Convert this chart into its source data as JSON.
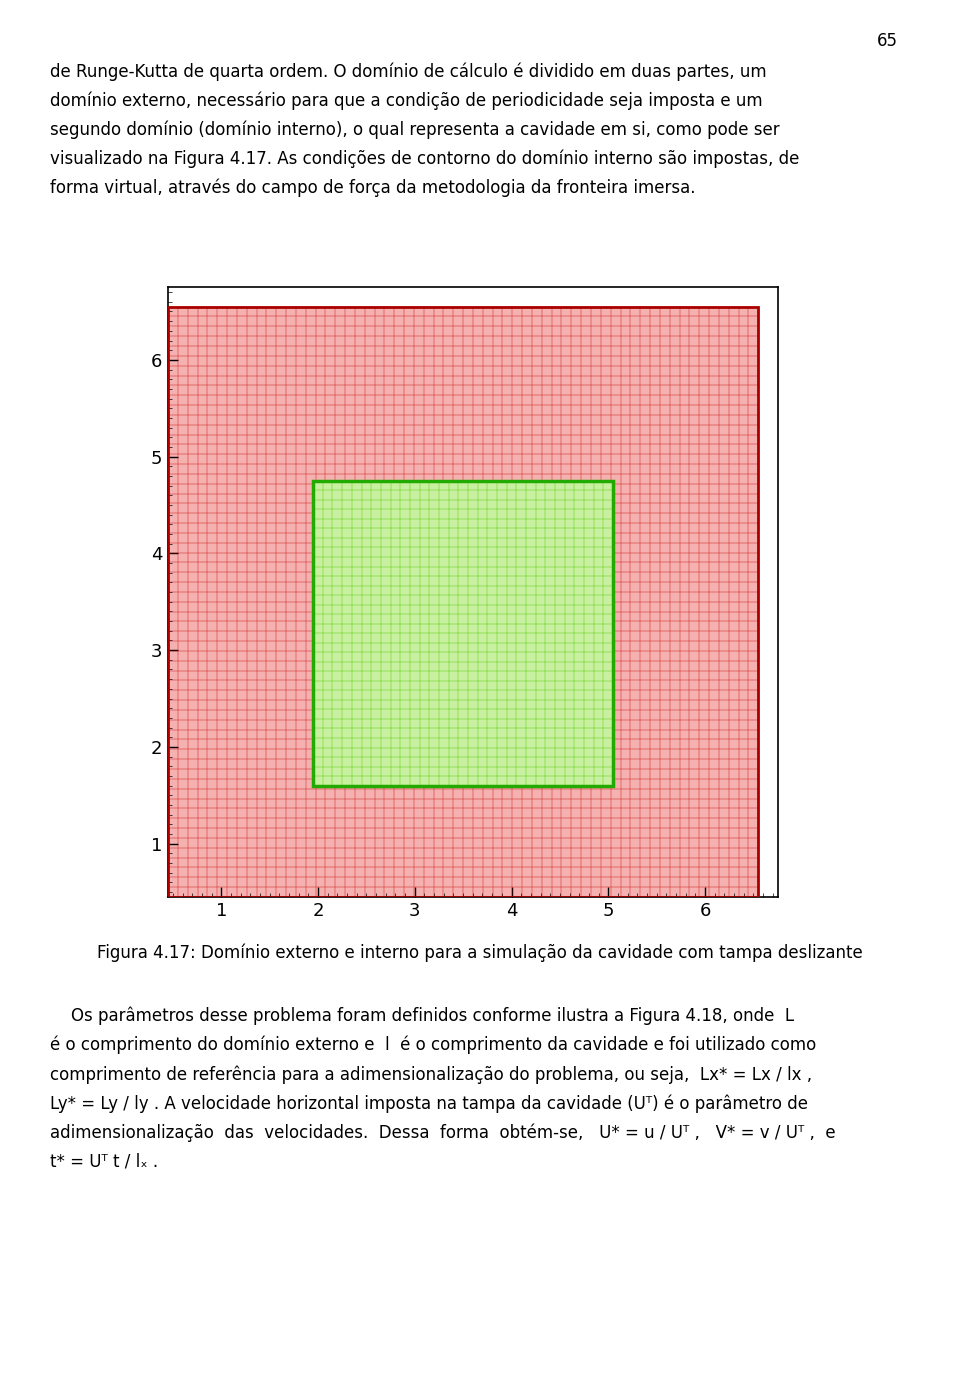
{
  "page_width": 9.6,
  "page_height": 13.85,
  "background_color": "#ffffff",
  "outer_domain": [
    0.45,
    6.55,
    0.45,
    6.55
  ],
  "inner_domain": [
    1.95,
    5.05,
    1.6,
    4.75
  ],
  "outer_grid_color": "#cc0000",
  "inner_grid_color": "#55cc00",
  "outer_border_color": "#aa0000",
  "inner_border_color": "#22aa00",
  "outer_fill_color": "#f5b0b0",
  "inner_fill_color": "#c8f0a0",
  "outer_grid_nx": 60,
  "outer_grid_ny": 60,
  "inner_grid_nx": 31,
  "inner_grid_ny": 32,
  "xlim": [
    0.45,
    6.75
  ],
  "ylim": [
    0.45,
    6.75
  ],
  "xticks": [
    1,
    2,
    3,
    4,
    5,
    6
  ],
  "yticks": [
    1,
    2,
    3,
    4,
    5,
    6
  ],
  "tick_fontsize": 13,
  "outer_border_linewidth": 2.0,
  "inner_border_linewidth": 2.5,
  "top_text_lines": [
    "de Runge-Kutta de quarta ordem. O domínio de cálculo é dividido em duas partes, um",
    "domínio externo, necessário para que a condição de periodicidade seja imposta e um",
    "segundo domínio (domínio interno), o qual representa a cavidade em si, como pode ser",
    "visualizado na Figura 4.17. As condições de contorno do domínio interno são impostas, de",
    "forma virtual, através do campo de força da metodologia da fronteira imersa."
  ],
  "caption": "Figura 4.17: Domínio externo e interno para a simulação da cavidade com tampa deslizante",
  "bottom_text_lines": [
    "    Os parâmetros desse problema foram definidos conforme ilustra a Figura 4.18, onde  L",
    "é o comprimento do domínio externo e  l  é o comprimento da cavidade e foi utilizado como",
    "comprimento de referência para a adimensionalização do problema, ou seja,  Lx* = Lx / lx ,",
    "Ly* = Ly / ly . A velocidade horizontal imposta na tampa da cavidade (Uᵀ) é o parâmetro de",
    "adimensionalização  das  velocidades.  Dessa  forma  obtém-se,   U* = u / Uᵀ ,   V* = v / Uᵀ ,  e",
    "t* = Uᵀ t / lₓ ."
  ],
  "page_number": "65",
  "text_fontsize": 12,
  "caption_fontsize": 12
}
